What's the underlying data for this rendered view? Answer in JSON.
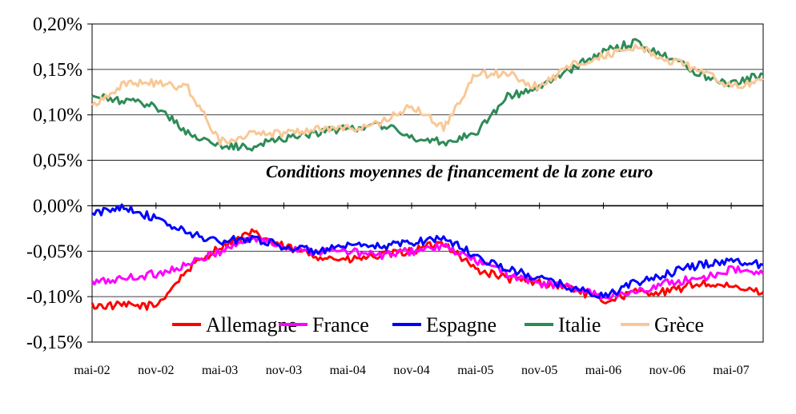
{
  "chart_data": {
    "type": "line",
    "title": "",
    "xlabel": "",
    "ylabel": "",
    "ylim": [
      -0.15,
      0.2
    ],
    "y_tick_labels": [
      "0,20%",
      "0,15%",
      "0,10%",
      "0,05%",
      "0,00%",
      "-0,05%",
      "-0,10%",
      "-0,15%"
    ],
    "y_tick_values": [
      0.2,
      0.15,
      0.1,
      0.05,
      0.0,
      -0.05,
      -0.1,
      -0.15
    ],
    "x_tick_labels": [
      "mai-02",
      "nov-02",
      "mai-03",
      "nov-03",
      "mai-04",
      "nov-04",
      "mai-05",
      "nov-05",
      "mai-06",
      "nov-06",
      "mai-07"
    ],
    "x_range": [
      "2002-05",
      "2007-08"
    ],
    "grid": "horizontal",
    "legend_position": "bottom-inside",
    "annotation": "Conditions moyennes de financement de la zone euro",
    "x": [
      "2002-05",
      "2002-08",
      "2002-11",
      "2003-02",
      "2003-05",
      "2003-08",
      "2003-11",
      "2004-02",
      "2004-05",
      "2004-08",
      "2004-11",
      "2005-02",
      "2005-05",
      "2005-08",
      "2005-11",
      "2006-02",
      "2006-05",
      "2006-08",
      "2006-11",
      "2007-02",
      "2007-05",
      "2007-08"
    ],
    "series": [
      {
        "name": "Allemagne",
        "color": "#ff0000",
        "values": [
          -0.11,
          -0.11,
          -0.11,
          -0.07,
          -0.045,
          -0.03,
          -0.045,
          -0.055,
          -0.06,
          -0.055,
          -0.05,
          -0.04,
          -0.07,
          -0.08,
          -0.085,
          -0.09,
          -0.105,
          -0.095,
          -0.095,
          -0.085,
          -0.09,
          -0.095
        ]
      },
      {
        "name": "France",
        "color": "#ff00ff",
        "values": [
          -0.085,
          -0.08,
          -0.075,
          -0.065,
          -0.05,
          -0.035,
          -0.045,
          -0.05,
          -0.05,
          -0.055,
          -0.05,
          -0.045,
          -0.06,
          -0.075,
          -0.085,
          -0.09,
          -0.1,
          -0.095,
          -0.085,
          -0.08,
          -0.07,
          -0.075
        ]
      },
      {
        "name": "Espagne",
        "color": "#0000ff",
        "values": [
          -0.01,
          0.0,
          -0.015,
          -0.03,
          -0.04,
          -0.035,
          -0.045,
          -0.05,
          -0.045,
          -0.045,
          -0.04,
          -0.035,
          -0.055,
          -0.07,
          -0.08,
          -0.09,
          -0.1,
          -0.085,
          -0.075,
          -0.065,
          -0.06,
          -0.065
        ]
      },
      {
        "name": "Italie",
        "color": "#2e8b57",
        "values": [
          0.12,
          0.115,
          0.11,
          0.08,
          0.065,
          0.065,
          0.075,
          0.08,
          0.085,
          0.09,
          0.075,
          0.07,
          0.08,
          0.12,
          0.13,
          0.15,
          0.17,
          0.18,
          0.165,
          0.145,
          0.135,
          0.145
        ]
      },
      {
        "name": "Grèce",
        "color": "#f9c896",
        "values": [
          0.11,
          0.135,
          0.135,
          0.13,
          0.07,
          0.08,
          0.08,
          0.085,
          0.085,
          0.09,
          0.11,
          0.085,
          0.145,
          0.145,
          0.13,
          0.155,
          0.165,
          0.175,
          0.16,
          0.15,
          0.13,
          0.14
        ]
      }
    ]
  }
}
